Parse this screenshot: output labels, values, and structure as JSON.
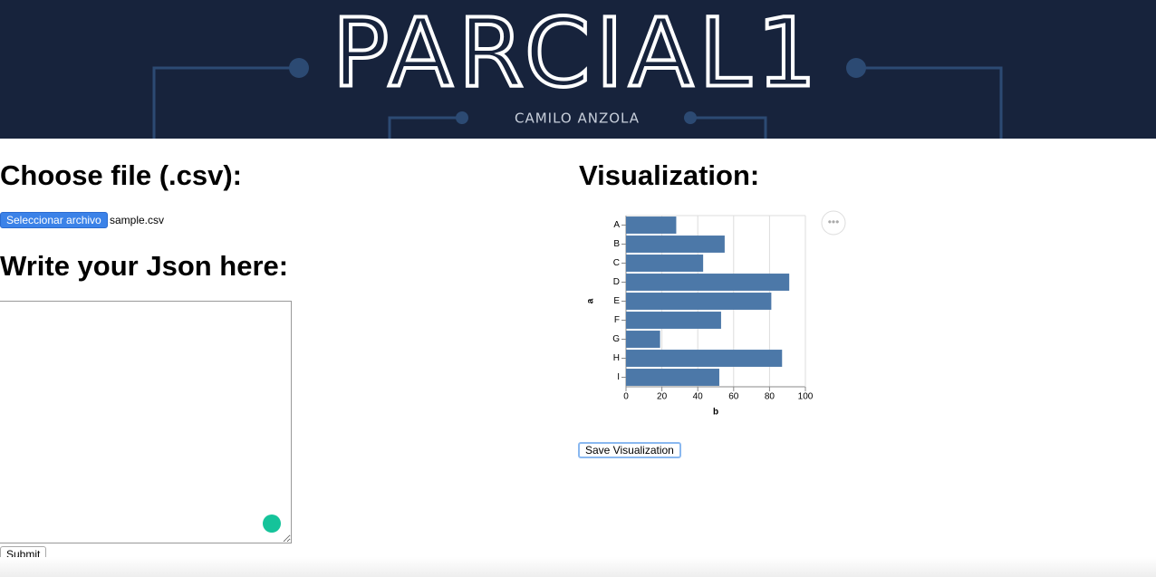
{
  "header": {
    "title": "PARCIAL1",
    "subtitle": "CAMILO ANZOLA"
  },
  "left": {
    "file_heading": "Choose file (.csv):",
    "file_button": "Seleccionar archivo",
    "file_name": "sample.csv",
    "json_heading": "Write your Json here:",
    "submit_button": "Submit"
  },
  "right": {
    "heading": "Visualization:",
    "save_button": "Save Visualization"
  },
  "chart_data": {
    "type": "barh",
    "x_label": "b",
    "y_label": "a",
    "categories": [
      "A",
      "B",
      "C",
      "D",
      "E",
      "F",
      "G",
      "H",
      "I"
    ],
    "values": [
      28,
      55,
      43,
      91,
      81,
      53,
      19,
      87,
      52
    ],
    "color": "#4c78a8",
    "xlim": [
      0,
      100
    ],
    "xticks": [
      0,
      20,
      40,
      60,
      80,
      100
    ],
    "grid": true
  }
}
